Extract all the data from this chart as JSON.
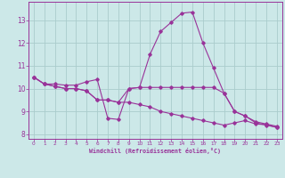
{
  "title": "",
  "xlabel": "Windchill (Refroidissement éolien,°C)",
  "ylabel": "",
  "bg_color": "#cce8e8",
  "grid_color": "#aacccc",
  "line_color": "#993399",
  "xlim": [
    -0.5,
    23.5
  ],
  "ylim": [
    7.8,
    13.8
  ],
  "yticks": [
    8,
    9,
    10,
    11,
    12,
    13
  ],
  "xticks": [
    0,
    1,
    2,
    3,
    4,
    5,
    6,
    7,
    8,
    9,
    10,
    11,
    12,
    13,
    14,
    15,
    16,
    17,
    18,
    19,
    20,
    21,
    22,
    23
  ],
  "series": [
    [
      10.5,
      10.2,
      10.2,
      10.15,
      10.15,
      10.3,
      10.4,
      8.7,
      8.65,
      10.0,
      10.05,
      11.5,
      12.5,
      12.9,
      13.3,
      13.35,
      12.0,
      10.9,
      9.8,
      9.0,
      8.8,
      8.5,
      8.4,
      8.3
    ],
    [
      10.5,
      10.2,
      10.1,
      10.0,
      10.0,
      9.9,
      9.5,
      9.5,
      9.4,
      10.0,
      10.05,
      10.05,
      10.05,
      10.05,
      10.05,
      10.05,
      10.05,
      10.05,
      9.8,
      9.0,
      8.8,
      8.55,
      8.45,
      8.35
    ],
    [
      10.5,
      10.2,
      10.1,
      10.0,
      10.0,
      9.9,
      9.5,
      9.5,
      9.4,
      9.4,
      9.3,
      9.2,
      9.0,
      8.9,
      8.8,
      8.7,
      8.6,
      8.5,
      8.4,
      8.5,
      8.6,
      8.45,
      8.42,
      8.3
    ]
  ]
}
